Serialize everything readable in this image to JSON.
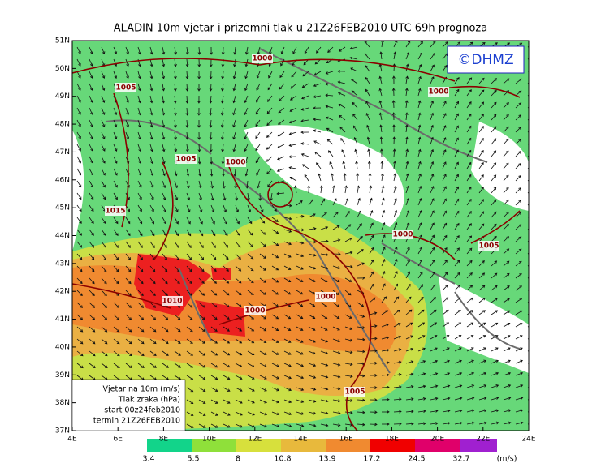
{
  "header": {
    "title": "ALADIN 10m vjetar i prizemni tlak u 21Z26FEB2010 UTC 69h prognoza"
  },
  "copyright": "©DHMZ",
  "map": {
    "lat_labels": [
      "51N",
      "50N",
      "49N",
      "48N",
      "47N",
      "46N",
      "45N",
      "44N",
      "43N",
      "42N",
      "41N",
      "40N",
      "39N",
      "38N",
      "37N"
    ],
    "lon_labels": [
      "4E",
      "6E",
      "8E",
      "10E",
      "12E",
      "14E",
      "16E",
      "18E",
      "20E",
      "22E",
      "24E"
    ],
    "isobar_labels": [
      "1000",
      "1005",
      "1000",
      "1005",
      "1000",
      "1015",
      "1000",
      "1005",
      "1010",
      "1000",
      "1000",
      "1005"
    ]
  },
  "legend": {
    "lines": [
      "Vjetar na 10m (m/s)",
      "Tlak zraka (hPa)",
      "start 00z24feb2010",
      "termin 21Z26FEB2010"
    ]
  },
  "colorbar": {
    "labels": [
      3.4,
      5.5,
      8,
      10.8,
      13.9,
      17.2,
      24.5,
      32.7
    ],
    "unit": "(m/s)"
  }
}
